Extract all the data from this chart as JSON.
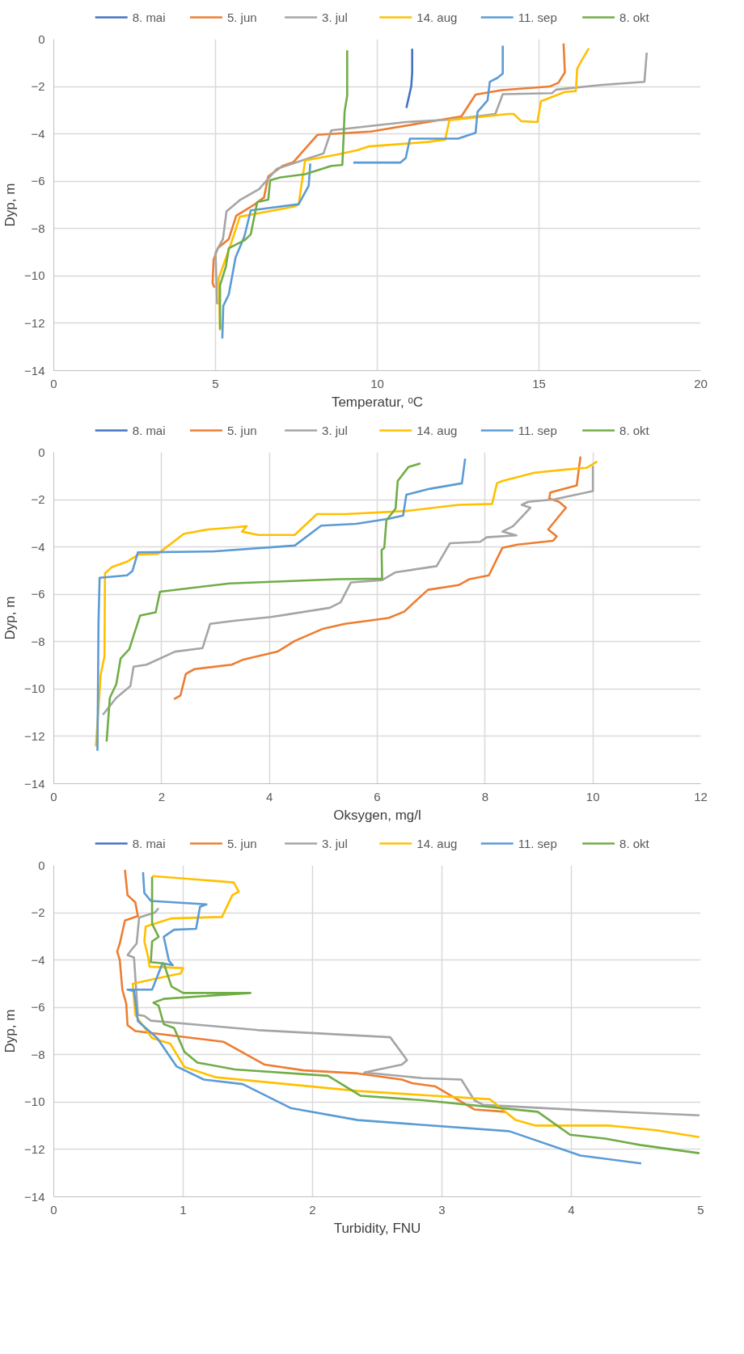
{
  "chart_data": [
    {
      "type": "line",
      "xlabel": "Temperatur, ᵒC",
      "ylabel": "Dyp, m",
      "xlim": [
        0,
        20
      ],
      "xticks": [
        0,
        5,
        10,
        15,
        20
      ],
      "ylim": [
        -14,
        0
      ],
      "yticks": [
        -14,
        -12,
        -10,
        -8,
        -6,
        -4,
        -2,
        0
      ],
      "grid": true,
      "legend": "top",
      "series": [
        {
          "name": "8. mai",
          "color": "#4472c4",
          "x": [
            11.08,
            11.08,
            11.05,
            10.9
          ],
          "values": [
            -0.4,
            -1.4,
            -2.0,
            -2.9
          ]
        },
        {
          "name": "5. jun",
          "color": "#ed7d31",
          "x": [
            15.76,
            15.8,
            15.6,
            15.33,
            13.85,
            13.04,
            12.6,
            9.8,
            8.15,
            7.4,
            7.07,
            6.63,
            6.5,
            6.22,
            5.64,
            5.41,
            5.07,
            4.94,
            4.91,
            4.97
          ],
          "values": [
            -0.18,
            -1.4,
            -1.84,
            -2.0,
            -2.15,
            -2.34,
            -3.26,
            -3.9,
            -4.04,
            -5.2,
            -5.35,
            -5.8,
            -6.68,
            -6.97,
            -7.46,
            -8.44,
            -8.83,
            -9.32,
            -10.3,
            -10.49
          ]
        },
        {
          "name": "3. jul",
          "color": "#a5a5a5",
          "x": [
            18.33,
            18.26,
            16.95,
            15.53,
            15.4,
            13.88,
            13.65,
            12.23,
            10.88,
            8.58,
            8.34,
            6.9,
            6.35,
            5.77,
            5.34,
            5.23,
            5.0,
            5.05
          ],
          "values": [
            -0.57,
            -1.8,
            -1.93,
            -2.13,
            -2.28,
            -2.32,
            -3.16,
            -3.4,
            -3.5,
            -3.85,
            -4.82,
            -5.47,
            -6.33,
            -6.78,
            -7.27,
            -8.44,
            -9.02,
            -11.2
          ]
        },
        {
          "name": "14. aug",
          "color": "#ffc000",
          "x": [
            16.54,
            16.31,
            16.18,
            16.14,
            15.8,
            15.06,
            14.95,
            14.45,
            14.22,
            14.05,
            12.23,
            12.1,
            11.55,
            11.0,
            9.73,
            9.39,
            8.72,
            7.77,
            7.57,
            7.44,
            5.75,
            5.48,
            5.1,
            5.14
          ],
          "values": [
            -0.39,
            -0.92,
            -1.25,
            -2.19,
            -2.23,
            -2.62,
            -3.5,
            -3.46,
            -3.16,
            -3.16,
            -3.42,
            -4.24,
            -4.34,
            -4.4,
            -4.53,
            -4.69,
            -4.88,
            -5.12,
            -6.97,
            -7.07,
            -7.5,
            -8.63,
            -10.1,
            -12.3
          ]
        },
        {
          "name": "11. sep",
          "color": "#5b9bd5",
          "x": [
            13.88,
            13.88,
            13.71,
            13.48,
            13.41,
            13.1,
            13.04,
            12.5,
            11.01,
            10.88,
            10.72,
            9.26,
            null,
            7.93,
            7.88,
            7.57,
            6.09,
            5.89,
            5.62,
            5.41,
            5.24,
            5.21
          ],
          "values": [
            -0.27,
            -1.45,
            -1.64,
            -1.8,
            -2.58,
            -3.07,
            -3.95,
            -4.2,
            -4.2,
            -5.02,
            -5.21,
            -5.21,
            null,
            -5.25,
            -6.19,
            -6.97,
            -7.23,
            -8.34,
            -9.22,
            -10.78,
            -11.27,
            -12.64
          ]
        },
        {
          "name": "8. okt",
          "color": "#70ad47",
          "x": [
            9.07,
            9.07,
            8.99,
            8.96,
            8.92,
            8.58,
            7.77,
            7.0,
            6.69,
            6.63,
            6.29,
            6.09,
            5.91,
            5.41,
            5.32,
            5.14,
            5.14
          ],
          "values": [
            -0.47,
            -2.38,
            -3.07,
            -4.14,
            -5.31,
            -5.35,
            -5.7,
            -5.84,
            -5.96,
            -6.78,
            -6.88,
            -8.24,
            -8.48,
            -8.83,
            -9.61,
            -10.39,
            -12.25
          ]
        }
      ]
    },
    {
      "type": "line",
      "xlabel": "Oksygen, mg/l",
      "ylabel": "Dyp, m",
      "xlim": [
        0,
        12
      ],
      "xticks": [
        0,
        2,
        4,
        6,
        8,
        10,
        12
      ],
      "ylim": [
        -14,
        0
      ],
      "yticks": [
        -14,
        -12,
        -10,
        -8,
        -6,
        -4,
        -2,
        0
      ],
      "grid": true,
      "legend": "top",
      "series": [
        {
          "name": "8. mai",
          "color": "#4472c4"
        },
        {
          "name": "5. jun",
          "color": "#ed7d31",
          "x": [
            9.77,
            9.7,
            9.21,
            9.19,
            9.37,
            9.5,
            9.17,
            9.33,
            9.26,
            8.6,
            8.32,
            8.07,
            7.71,
            7.51,
            6.94,
            6.5,
            6.21,
            5.4,
            5.0,
            4.47,
            4.15,
            3.5,
            3.3,
            2.61,
            2.45,
            2.35,
            2.23
          ],
          "values": [
            -0.18,
            -1.4,
            -1.7,
            -1.95,
            -2.09,
            -2.34,
            -3.26,
            -3.55,
            -3.74,
            -3.9,
            -4.04,
            -5.2,
            -5.36,
            -5.61,
            -5.81,
            -6.73,
            -7.0,
            -7.25,
            -7.45,
            -7.97,
            -8.42,
            -8.77,
            -8.97,
            -9.16,
            -9.36,
            -10.27,
            -10.43
          ]
        },
        {
          "name": "3. jul",
          "color": "#a5a5a5",
          "x": [
            10.0,
            10.0,
            9.49,
            9.29,
            8.8,
            8.68,
            8.84,
            8.52,
            8.32,
            8.58,
            8.03,
            7.91,
            7.35,
            7.1,
            6.34,
            6.09,
            5.51,
            5.32,
            5.12,
            4.03,
            3.34,
            2.9,
            2.76,
            2.25,
            1.72,
            1.48,
            1.42,
            1.16,
            0.91
          ],
          "values": [
            -0.57,
            -1.64,
            -1.89,
            -1.99,
            -2.09,
            -2.22,
            -2.34,
            -3.12,
            -3.35,
            -3.51,
            -3.59,
            -3.78,
            -3.84,
            -4.81,
            -5.07,
            -5.4,
            -5.5,
            -6.34,
            -6.57,
            -6.96,
            -7.12,
            -7.25,
            -8.27,
            -8.42,
            -8.97,
            -9.06,
            -9.88,
            -10.37,
            -11.09
          ]
        },
        {
          "name": "14. aug",
          "color": "#ffc000",
          "x": [
            10.08,
            9.88,
            9.53,
            8.92,
            8.32,
            8.22,
            8.13,
            7.51,
            6.54,
            5.41,
            4.88,
            4.47,
            3.79,
            3.49,
            3.58,
            3.42,
            2.86,
            2.41,
            1.93,
            1.56,
            1.36,
            1.08,
            0.95,
            0.94,
            0.87,
            0.82,
            0.78
          ],
          "values": [
            -0.39,
            -0.66,
            -0.72,
            -0.86,
            -1.21,
            -1.31,
            -2.18,
            -2.22,
            -2.48,
            -2.61,
            -2.61,
            -3.49,
            -3.49,
            -3.35,
            -3.12,
            -3.16,
            -3.26,
            -3.45,
            -4.29,
            -4.33,
            -4.62,
            -4.85,
            -5.11,
            -8.62,
            -9.4,
            -11.15,
            -12.42
          ]
        },
        {
          "name": "11. sep",
          "color": "#5b9bd5",
          "x": [
            7.63,
            7.57,
            6.98,
            6.54,
            6.48,
            6.21,
            5.61,
            4.96,
            4.47,
            2.94,
            1.56,
            1.46,
            1.36,
            0.85,
            0.83,
            0.81
          ],
          "values": [
            -0.27,
            -1.31,
            -1.54,
            -1.79,
            -2.67,
            -2.81,
            -3.02,
            -3.1,
            -3.94,
            -4.19,
            -4.23,
            -5.01,
            -5.2,
            -5.3,
            -7.15,
            -12.61
          ]
        },
        {
          "name": "8. okt",
          "color": "#70ad47",
          "x": [
            6.8,
            6.58,
            6.38,
            6.34,
            6.17,
            6.13,
            6.08,
            6.09,
            5.28,
            3.26,
            1.97,
            1.89,
            1.6,
            1.4,
            1.24,
            1.16,
            1.04,
            0.98
          ],
          "values": [
            -0.47,
            -0.62,
            -1.21,
            -2.38,
            -2.87,
            -4.04,
            -4.13,
            -5.34,
            -5.36,
            -5.54,
            -5.89,
            -6.76,
            -6.9,
            -8.32,
            -8.71,
            -9.79,
            -10.37,
            -12.22
          ]
        }
      ]
    },
    {
      "type": "line",
      "xlabel": "Turbidity, FNU",
      "ylabel": "Dyp, m",
      "xlim": [
        0,
        5
      ],
      "xticks": [
        0,
        1,
        2,
        3,
        4,
        5
      ],
      "ylim": [
        -14,
        0
      ],
      "yticks": [
        -14,
        -12,
        -10,
        -8,
        -6,
        -4,
        -2,
        0
      ],
      "grid": true,
      "legend": "top",
      "series": [
        {
          "name": "8. mai",
          "color": "#4472c4"
        },
        {
          "name": "5. jun",
          "color": "#ed7d31",
          "x": [
            0.55,
            0.57,
            0.63,
            0.65,
            0.55,
            0.51,
            0.49,
            0.51,
            0.53,
            0.56,
            0.57,
            0.63,
            1.31,
            1.63,
            1.93,
            2.35,
            2.69,
            2.77,
            2.95,
            3.25,
            3.49
          ],
          "values": [
            -0.19,
            -1.26,
            -1.56,
            -2.14,
            -2.33,
            -3.31,
            -3.64,
            -3.99,
            -5.25,
            -5.84,
            -6.75,
            -7.0,
            -7.45,
            -8.42,
            -8.66,
            -8.79,
            -9.05,
            -9.2,
            -9.34,
            -10.31,
            -10.41
          ]
        },
        {
          "name": "3. jul",
          "color": "#a5a5a5",
          "x": [
            0.81,
            0.78,
            0.66,
            0.64,
            0.61,
            0.57,
            0.62,
            0.65,
            0.7,
            0.75,
            1.58,
            2.6,
            2.73,
            2.69,
            2.4,
            2.85,
            3.15,
            3.25,
            3.32,
            4.12,
            4.99
          ],
          "values": [
            -1.81,
            -2.0,
            -2.2,
            -3.31,
            -3.5,
            -3.79,
            -3.89,
            -6.32,
            -6.36,
            -6.56,
            -6.96,
            -7.26,
            -8.23,
            -8.42,
            -8.75,
            -8.99,
            -9.05,
            -9.92,
            -10.12,
            -10.35,
            -10.56
          ]
        },
        {
          "name": "14. aug",
          "color": "#ffc000",
          "x": [
            0.76,
            1.39,
            1.43,
            1.38,
            1.3,
            0.91,
            0.71,
            0.7,
            0.73,
            0.74,
            1.0,
            0.98,
            0.8,
            0.61,
            0.63,
            0.76,
            0.9,
            1.01,
            1.25,
            2.35,
            3.37,
            3.57,
            3.72,
            4.29,
            4.66,
            4.99
          ],
          "values": [
            -0.45,
            -0.72,
            -1.11,
            -1.26,
            -2.18,
            -2.24,
            -2.59,
            -3.21,
            -3.89,
            -4.28,
            -4.34,
            -4.57,
            -4.77,
            -5.0,
            -6.32,
            -7.3,
            -7.53,
            -8.52,
            -8.95,
            -9.53,
            -9.88,
            -10.76,
            -10.99,
            -10.99,
            -11.19,
            -11.48
          ]
        },
        {
          "name": "11. sep",
          "color": "#5b9bd5",
          "x": [
            0.69,
            0.7,
            0.75,
            1.18,
            1.13,
            1.1,
            0.93,
            0.85,
            0.89,
            0.92,
            0.84,
            0.76,
            0.57,
            0.62,
            0.65,
            0.8,
            0.95,
            1.16,
            1.46,
            1.83,
            2.35,
            3.52,
            4.07,
            4.54
          ],
          "values": [
            -0.29,
            -1.17,
            -1.5,
            -1.65,
            -1.75,
            -2.68,
            -2.72,
            -3.02,
            -4.03,
            -4.22,
            -4.14,
            -5.25,
            -5.25,
            -5.31,
            -6.58,
            -7.3,
            -8.5,
            -9.05,
            -9.24,
            -10.25,
            -10.76,
            -11.23,
            -12.26,
            -12.59
          ]
        },
        {
          "name": "8. okt",
          "color": "#70ad47",
          "x": [
            0.76,
            0.76,
            0.81,
            0.76,
            0.75,
            0.85,
            0.91,
            1.0,
            1.52,
            0.85,
            0.77,
            0.81,
            0.85,
            0.93,
            1.01,
            1.11,
            1.4,
            2.12,
            2.37,
            2.85,
            3.74,
            3.99,
            4.26,
            4.53,
            4.99
          ],
          "values": [
            -0.49,
            -2.47,
            -3.02,
            -3.21,
            -4.09,
            -4.14,
            -5.12,
            -5.39,
            -5.39,
            -5.64,
            -5.8,
            -5.93,
            -6.71,
            -6.87,
            -7.88,
            -8.33,
            -8.62,
            -8.89,
            -9.73,
            -9.92,
            -10.41,
            -11.38,
            -11.54,
            -11.81,
            -12.16
          ]
        }
      ]
    }
  ]
}
